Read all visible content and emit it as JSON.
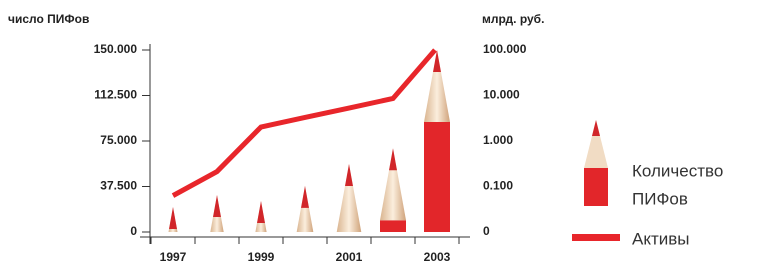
{
  "chart_data": {
    "type": "bar",
    "title": "число  ПИФов",
    "y2_title": "млрд.  руб.",
    "categories": [
      "1997",
      null,
      "1999",
      null,
      "2001",
      null,
      "2003"
    ],
    "series": [
      {
        "name": "Количество ПИФов",
        "color": "#e2262a",
        "values": [
          20600,
          30500,
          25500,
          38000,
          56000,
          69000,
          150000
        ]
      },
      {
        "name": "Активы",
        "color": "#e8262b",
        "axis": "y2",
        "values": [
          0.063,
          0.213,
          2.03,
          3.3,
          5.3,
          8.6,
          100
        ]
      }
    ],
    "ylim": [
      0,
      150000
    ],
    "yticks": [
      0,
      {
        "value": 37500,
        "label": "37.500"
      },
      {
        "value": 75000,
        "label": "75.000"
      },
      {
        "value": 112500,
        "label": "112.500"
      },
      {
        "value": 150000,
        "label": "150.000"
      }
    ],
    "y2lim": [
      0.01,
      100
    ],
    "y2_log": true,
    "y2_bottom_label": "0",
    "y2ticks": [
      {
        "value": 0.1,
        "label": "0.100"
      },
      {
        "value": 1,
        "label": "1.000"
      },
      {
        "value": 10,
        "label": "10.000"
      },
      {
        "value": 100,
        "label": "100.000"
      }
    ]
  }
}
